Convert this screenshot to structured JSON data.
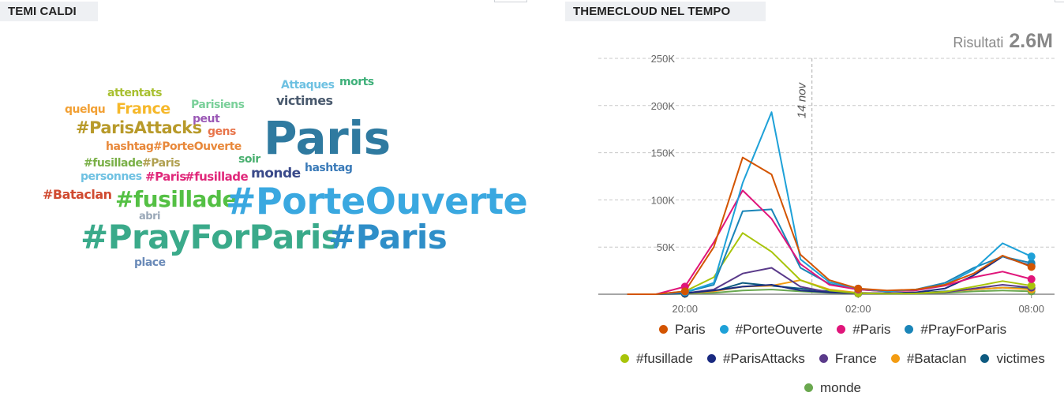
{
  "wordcloud": {
    "title": "TEMI CALDI",
    "words": [
      {
        "text": "attentats",
        "color": "#a8c030"
      },
      {
        "text": "Attaques",
        "color": "#6ec1e2"
      },
      {
        "text": "morts",
        "color": "#3fb07a"
      },
      {
        "text": "quelqu",
        "color": "#f2a034"
      },
      {
        "text": "France",
        "color": "#f6b82a"
      },
      {
        "text": "Parisiens",
        "color": "#7ad09a"
      },
      {
        "text": "victimes",
        "color": "#4a5a6e"
      },
      {
        "text": "peut",
        "color": "#9b59b6"
      },
      {
        "text": "#ParisAttacks",
        "color": "#b89a2a"
      },
      {
        "text": "gens",
        "color": "#e8744a"
      },
      {
        "text": "Paris",
        "color": "#2f7aa0"
      },
      {
        "text": "hashtag",
        "color": "#e8883a"
      },
      {
        "text": "#PorteOuverte",
        "color": "#e8883a"
      },
      {
        "text": "#fusillade",
        "color": "#7ab048"
      },
      {
        "text": "#Paris",
        "color": "#b0a050"
      },
      {
        "text": "soir",
        "color": "#4ab070"
      },
      {
        "text": "hashtag",
        "color": "#3a7ab8"
      },
      {
        "text": "personnes",
        "color": "#6ec1e2"
      },
      {
        "text": "#Paris",
        "color": "#e0287a"
      },
      {
        "text": "#fusillade",
        "color": "#e0287a"
      },
      {
        "text": "monde",
        "color": "#3a4a8a"
      },
      {
        "text": "#Bataclan",
        "color": "#d04a30"
      },
      {
        "text": "#fusillade",
        "color": "#54c044"
      },
      {
        "text": "#PorteOuverte",
        "color": "#3aa8e0"
      },
      {
        "text": "abri",
        "color": "#9aa8b8"
      },
      {
        "text": "#PrayForParis",
        "color": "#3aaa8a"
      },
      {
        "text": "#Paris",
        "color": "#2e8ec8"
      },
      {
        "text": "place",
        "color": "#6a8ab8"
      }
    ]
  },
  "themecloud": {
    "title": "THEMECLOUD NEL TEMPO",
    "results_label": "Risultati",
    "results_value": "2.6M"
  },
  "chart_data": {
    "type": "line",
    "title": "THEMECLOUD NEL TEMPO",
    "x": [
      -2,
      -1,
      0,
      1,
      2,
      3,
      4,
      5,
      6,
      7,
      8,
      9,
      10,
      11,
      12
    ],
    "x_tick_labels": [
      {
        "x": 0,
        "label": "20:00"
      },
      {
        "x": 6,
        "label": "02:00"
      },
      {
        "x": 12,
        "label": "08:00"
      }
    ],
    "xlim": [
      -3,
      12.8
    ],
    "ylim": [
      0,
      250000
    ],
    "y_ticks": [
      {
        "v": 50000,
        "label": "50K"
      },
      {
        "v": 100000,
        "label": "100K"
      },
      {
        "v": 150000,
        "label": "150K"
      },
      {
        "v": 200000,
        "label": "200K"
      },
      {
        "v": 250000,
        "label": "250K"
      }
    ],
    "annotation": {
      "x": 4.4,
      "label": "14 nov"
    },
    "grid": true,
    "legend_position": "bottom",
    "series": [
      {
        "name": "Paris",
        "color": "#d35400",
        "values": [
          0,
          0,
          3000,
          50000,
          145000,
          127000,
          42000,
          15000,
          6000,
          4000,
          5000,
          10000,
          22000,
          41000,
          29000
        ]
      },
      {
        "name": "#PorteOuverte",
        "color": "#1ea1d8",
        "values": [
          0,
          0,
          2000,
          12000,
          118000,
          193000,
          37000,
          13000,
          6000,
          3000,
          5000,
          10000,
          26000,
          54000,
          40000
        ]
      },
      {
        "name": "#Paris",
        "color": "#e0157a",
        "values": [
          0,
          0,
          8000,
          55000,
          110000,
          80000,
          32000,
          10000,
          5000,
          3000,
          4000,
          9000,
          18000,
          24000,
          16000
        ]
      },
      {
        "name": "#PrayForParis",
        "color": "#1a85b8",
        "values": [
          0,
          0,
          2000,
          10000,
          88000,
          90000,
          28000,
          11000,
          5000,
          3000,
          5000,
          12000,
          28000,
          40000,
          33000
        ]
      },
      {
        "name": "#fusillade",
        "color": "#a8c40a",
        "values": [
          0,
          0,
          3000,
          18000,
          65000,
          45000,
          15000,
          4000,
          1000,
          500,
          800,
          2500,
          8000,
          14000,
          9000
        ]
      },
      {
        "name": "#ParisAttacks",
        "color": "#1a2a80",
        "values": [
          0,
          0,
          1000,
          4000,
          8000,
          10000,
          4000,
          2000,
          1000,
          1000,
          2000,
          6000,
          20000,
          40000,
          30000
        ]
      },
      {
        "name": "France",
        "color": "#5a3a8a",
        "values": [
          0,
          0,
          1000,
          5000,
          22000,
          28000,
          8000,
          2000,
          800,
          500,
          800,
          2000,
          6000,
          10000,
          7000
        ]
      },
      {
        "name": "#Bataclan",
        "color": "#f39c12",
        "values": [
          0,
          0,
          1000,
          3000,
          8000,
          9000,
          15000,
          5000,
          1500,
          800,
          1000,
          2500,
          5000,
          7000,
          5000
        ]
      },
      {
        "name": "victimes",
        "color": "#0e5a80",
        "values": [
          0,
          0,
          1000,
          3000,
          12000,
          9000,
          6000,
          3000,
          1500,
          1000,
          1500,
          3000,
          5000,
          7000,
          6000
        ]
      },
      {
        "name": "monde",
        "color": "#6aa84f",
        "values": [
          0,
          0,
          500,
          1500,
          4000,
          5000,
          3000,
          1500,
          800,
          500,
          700,
          1500,
          3000,
          4000,
          3000
        ]
      }
    ]
  }
}
